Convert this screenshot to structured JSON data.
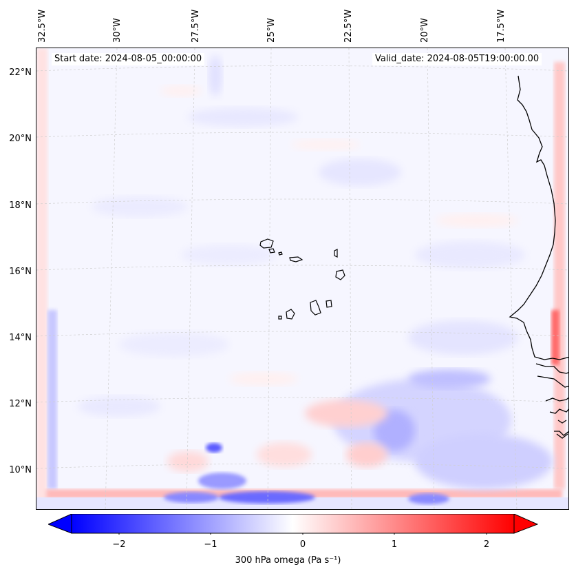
{
  "header": {
    "start_date": "Start date: 2024-08-05_00:00:00",
    "valid_date": "Valid_date: 2024-08-05T19:00:00.00"
  },
  "map": {
    "longitude_labels": [
      "32.5°W",
      "30°W",
      "27.5°W",
      "25°W",
      "22.5°W",
      "20°W",
      "17.5°W"
    ],
    "latitude_labels": [
      "22°N",
      "20°N",
      "18°N",
      "16°N",
      "14°N",
      "12°N",
      "10°N"
    ],
    "features": [
      "Cape Verde islands",
      "West African coastline"
    ]
  },
  "colorbar": {
    "title": "300 hPa omega (Pa s⁻¹)",
    "ticks": [
      "−2",
      "−1",
      "0",
      "1",
      "2"
    ],
    "range": [
      -2.5,
      2.5
    ],
    "colormap": "bwr",
    "colors": {
      "min": "#0000ff",
      "mid": "#ffffff",
      "max": "#ff0000"
    }
  }
}
